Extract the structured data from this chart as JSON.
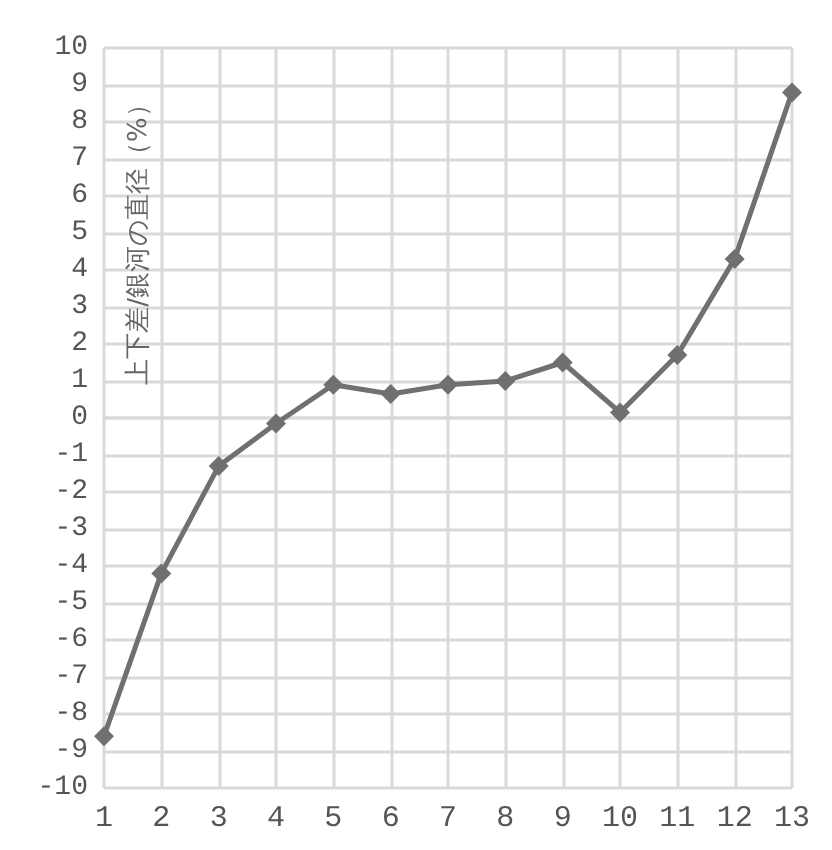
{
  "chart_data": {
    "type": "line",
    "ylabel": "上下差/銀河の直径（%）",
    "categories": [
      "1",
      "2",
      "3",
      "4",
      "5",
      "6",
      "7",
      "8",
      "9",
      "10",
      "11",
      "12",
      "13"
    ],
    "series": [
      {
        "color": "#707070",
        "values": [
          -8.6,
          -4.2,
          -1.3,
          -0.15,
          0.9,
          0.65,
          0.9,
          1.0,
          1.5,
          0.15,
          1.7,
          4.3,
          8.8
        ]
      }
    ],
    "ylim": [
      -10,
      10
    ],
    "yticks": [
      -10,
      -9,
      -8,
      -7,
      -6,
      -5,
      -4,
      -3,
      -2,
      -1,
      0,
      1,
      2,
      3,
      4,
      5,
      6,
      7,
      8,
      9,
      10
    ],
    "grid": true,
    "marker": "diamond",
    "line_style": "solid"
  }
}
